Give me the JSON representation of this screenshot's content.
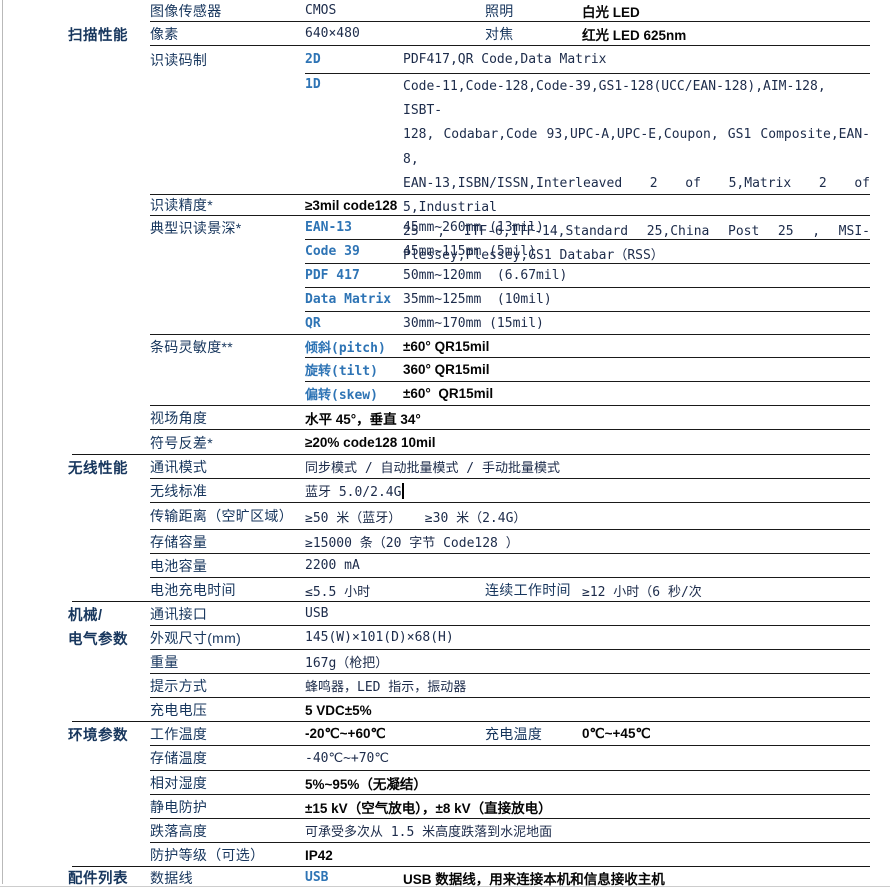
{
  "table": {
    "sections": [
      {
        "name": "scan-performance",
        "rows": [
          {
            "param": "图像传感器",
            "value": "CMOS",
            "rparam": "照明",
            "rvalue": "白光 LED"
          },
          {
            "cat": "扫描性能",
            "param": "像素",
            "value": "640×480",
            "rparam": "对焦",
            "rvalue": "红光 LED 625nm"
          },
          {
            "param": "识读码制",
            "sub": "2D",
            "value": "PDF417,QR Code,Data Matrix"
          },
          {
            "sub": "1D",
            "value_lines": [
              "Code-11,Code-128,Code-39,GS1-128(UCC/EAN-128),AIM-128, ISBT-",
              "128, Codabar,Code 93,UPC-A,UPC-E,Coupon, GS1 Composite,EAN-8,",
              "EAN-13,ISBN/ISSN,Interleaved 2 of 5,Matrix 2 of 5,Industrial",
              "25 , ITF-6,ITF-14,Standard 25,China Post 25 , MSI-",
              "Plessey,Plessey,GS1 Databar（RSS）"
            ]
          },
          {
            "param": "识读精度*",
            "value": "≥3mil code128"
          },
          {
            "param": "典型识读景深*",
            "sub": "EAN-13",
            "value": "45mm~260mm (13mil)"
          },
          {
            "sub": "Code 39",
            "value": "45mm~115mm (5mil)"
          },
          {
            "sub": "PDF 417",
            "value": "50mm~120mm  (6.67mil)"
          },
          {
            "sub": "Data Matrix",
            "value": "35mm~125mm  (10mil)"
          },
          {
            "sub": "QR",
            "value": "30mm~170mm (15mil)"
          },
          {
            "param": "条码灵敏度**",
            "sub": "倾斜(pitch)",
            "value": "±60° QR15mil"
          },
          {
            "sub": "旋转(tilt)",
            "value": "360° QR15mil"
          },
          {
            "sub": "偏转(skew)",
            "value": "±60°  QR15mil"
          },
          {
            "param": "视场角度",
            "value": "水平 45°，垂直 34°"
          },
          {
            "param": "符号反差*",
            "value": "≥20% code128 10mil"
          }
        ]
      },
      {
        "name": "wireless-performance",
        "rows": [
          {
            "cat": "无线性能",
            "param": "通讯模式",
            "value": "同步模式 / 自动批量模式 / 手动批量模式"
          },
          {
            "param": "无线标准",
            "value": "蓝牙 5.0/2.4G"
          },
          {
            "param": "传输距离（空旷区域）",
            "value": "≥50 米（蓝牙）   ≥30 米（2.4G）"
          },
          {
            "param": "存储容量",
            "value": "≥15000 条（20 字节 Code128 ）"
          },
          {
            "param": "电池容量",
            "value": "2200 mA"
          },
          {
            "param": "电池充电时间",
            "value": "≤5.5 小时",
            "rparam": "连续工作时间",
            "rvalue": "≥12 小时（6 秒/次"
          }
        ]
      },
      {
        "name": "mechanical-electrical",
        "rows": [
          {
            "cat": "机械/",
            "param": "通讯接口",
            "value": "USB"
          },
          {
            "cat": "电气参数",
            "param": "外观尺寸(mm)",
            "value": "145(W)×101(D)×68(H)"
          },
          {
            "param": "重量",
            "value": "167g（枪把）"
          },
          {
            "param": "提示方式",
            "value": "蜂鸣器，LED 指示，振动器"
          },
          {
            "param": "充电电压",
            "value": "5 VDC±5%"
          }
        ]
      },
      {
        "name": "environment",
        "rows": [
          {
            "cat": "环境参数",
            "param": "工作温度",
            "value": "-20℃~+60℃",
            "rparam": "充电温度",
            "rvalue": "0℃~+45℃"
          },
          {
            "param": "存储温度",
            "value": "-40℃~+70℃"
          },
          {
            "param": "相对湿度",
            "value": "5%~95%（无凝结）"
          },
          {
            "param": "静电防护",
            "value": "±15 kV（空气放电），±8 kV（直接放电）"
          },
          {
            "param": "跌落高度",
            "value": "可承受多次从 1.5 米高度跌落到水泥地面"
          },
          {
            "param": "防护等级（可选）",
            "value": "IP42"
          }
        ]
      },
      {
        "name": "accessories",
        "rows": [
          {
            "cat": "配件列表",
            "param": "数据线",
            "sub": "USB",
            "value": "USB 数据线，用来连接本机和信息接收主机"
          }
        ]
      }
    ]
  },
  "colors": {
    "category": "#17365D",
    "param": "#17365D",
    "sub_label": "#2E74B5",
    "rule_line": "#1a1a1a"
  }
}
